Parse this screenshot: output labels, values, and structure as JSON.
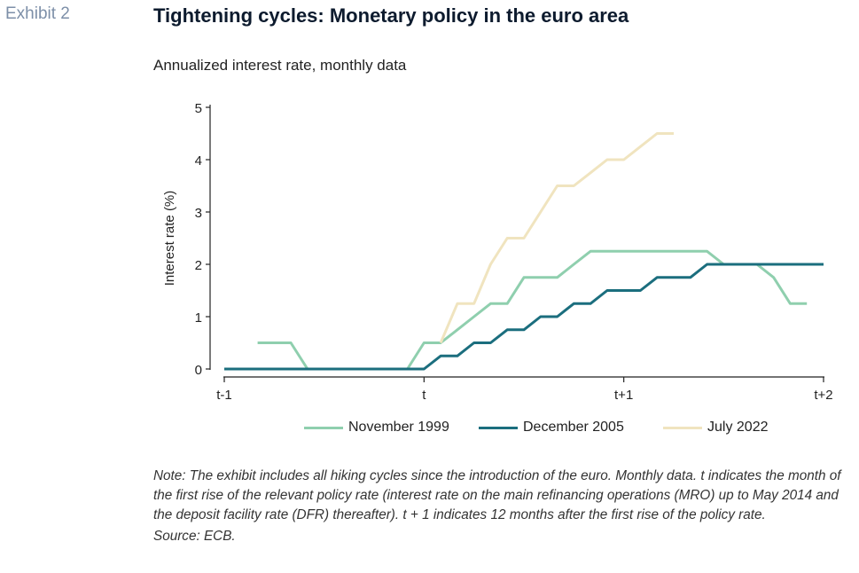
{
  "header": {
    "exhibit": "Exhibit 2",
    "title": "Tightening cycles: Monetary policy in the euro area",
    "subtitle": "Annualized interest rate, monthly data"
  },
  "notes": {
    "note": "Note: The exhibit includes all hiking cycles since the introduction of the euro. Monthly data. t indicates the month of the first rise of the relevant policy rate (interest rate on the main refinancing operations (MRO) up to May 2014 and the deposit facility rate (DFR) thereafter). t + 1 indicates 12 months after the first rise of the policy rate.",
    "source": "Source: ECB."
  },
  "chart_data": {
    "type": "line",
    "title": "Tightening cycles: Monetary policy in the euro area",
    "subtitle": "Annualized interest rate, monthly data",
    "xlabel": "",
    "ylabel": "Interest rate (%)",
    "x_unit": "months relative to t",
    "xlim": [
      -12,
      24
    ],
    "ylim": [
      0,
      5
    ],
    "yticks": [
      0,
      1,
      2,
      3,
      4,
      5
    ],
    "xticks": [
      {
        "value": -12,
        "label": "t-1"
      },
      {
        "value": 0,
        "label": "t"
      },
      {
        "value": 12,
        "label": "t+1"
      },
      {
        "value": 24,
        "label": "t+2"
      }
    ],
    "grid": false,
    "legend_position": "bottom",
    "series": [
      {
        "name": "November 1999",
        "color": "#8fcfae",
        "x": [
          -10,
          -9,
          -8,
          -7,
          -6,
          -5,
          -4,
          -3,
          -2,
          -1,
          0,
          1,
          2,
          3,
          4,
          5,
          6,
          7,
          8,
          9,
          10,
          11,
          12,
          13,
          14,
          15,
          16,
          17,
          18,
          19,
          20,
          21,
          22,
          23,
          24
        ],
        "y": [
          0.5,
          0.5,
          0.5,
          0,
          0,
          0,
          0,
          0,
          0,
          0,
          0.5,
          0.5,
          0.75,
          1,
          1.25,
          1.25,
          1.75,
          1.75,
          1.75,
          2,
          2.25,
          2.25,
          2.25,
          2.25,
          2.25,
          2.25,
          2.25,
          2.25,
          2,
          2,
          2,
          1.75,
          1.25,
          1.25,
          null
        ]
      },
      {
        "name": "December 2005",
        "color": "#1b6e7e",
        "x": [
          -12,
          -11,
          -10,
          -9,
          -8,
          -7,
          -6,
          -5,
          -4,
          -3,
          -2,
          -1,
          0,
          1,
          2,
          3,
          4,
          5,
          6,
          7,
          8,
          9,
          10,
          11,
          12,
          13,
          14,
          15,
          16,
          17,
          18,
          19,
          20,
          21,
          22,
          23,
          24
        ],
        "y": [
          0,
          0,
          0,
          0,
          0,
          0,
          0,
          0,
          0,
          0,
          0,
          0,
          0,
          0.25,
          0.25,
          0.5,
          0.5,
          0.75,
          0.75,
          1,
          1,
          1.25,
          1.25,
          1.5,
          1.5,
          1.5,
          1.75,
          1.75,
          1.75,
          2,
          2,
          2,
          2,
          2,
          2,
          2,
          2
        ]
      },
      {
        "name": "July 2022",
        "color": "#f0e4bf",
        "x": [
          1,
          2,
          3,
          4,
          5,
          6,
          7,
          8,
          9,
          10,
          11,
          12,
          13,
          14,
          15
        ],
        "y": [
          0.5,
          1.25,
          1.25,
          2,
          2.5,
          2.5,
          3,
          3.5,
          3.5,
          3.75,
          4,
          4,
          4.25,
          4.5,
          4.5
        ]
      }
    ]
  }
}
